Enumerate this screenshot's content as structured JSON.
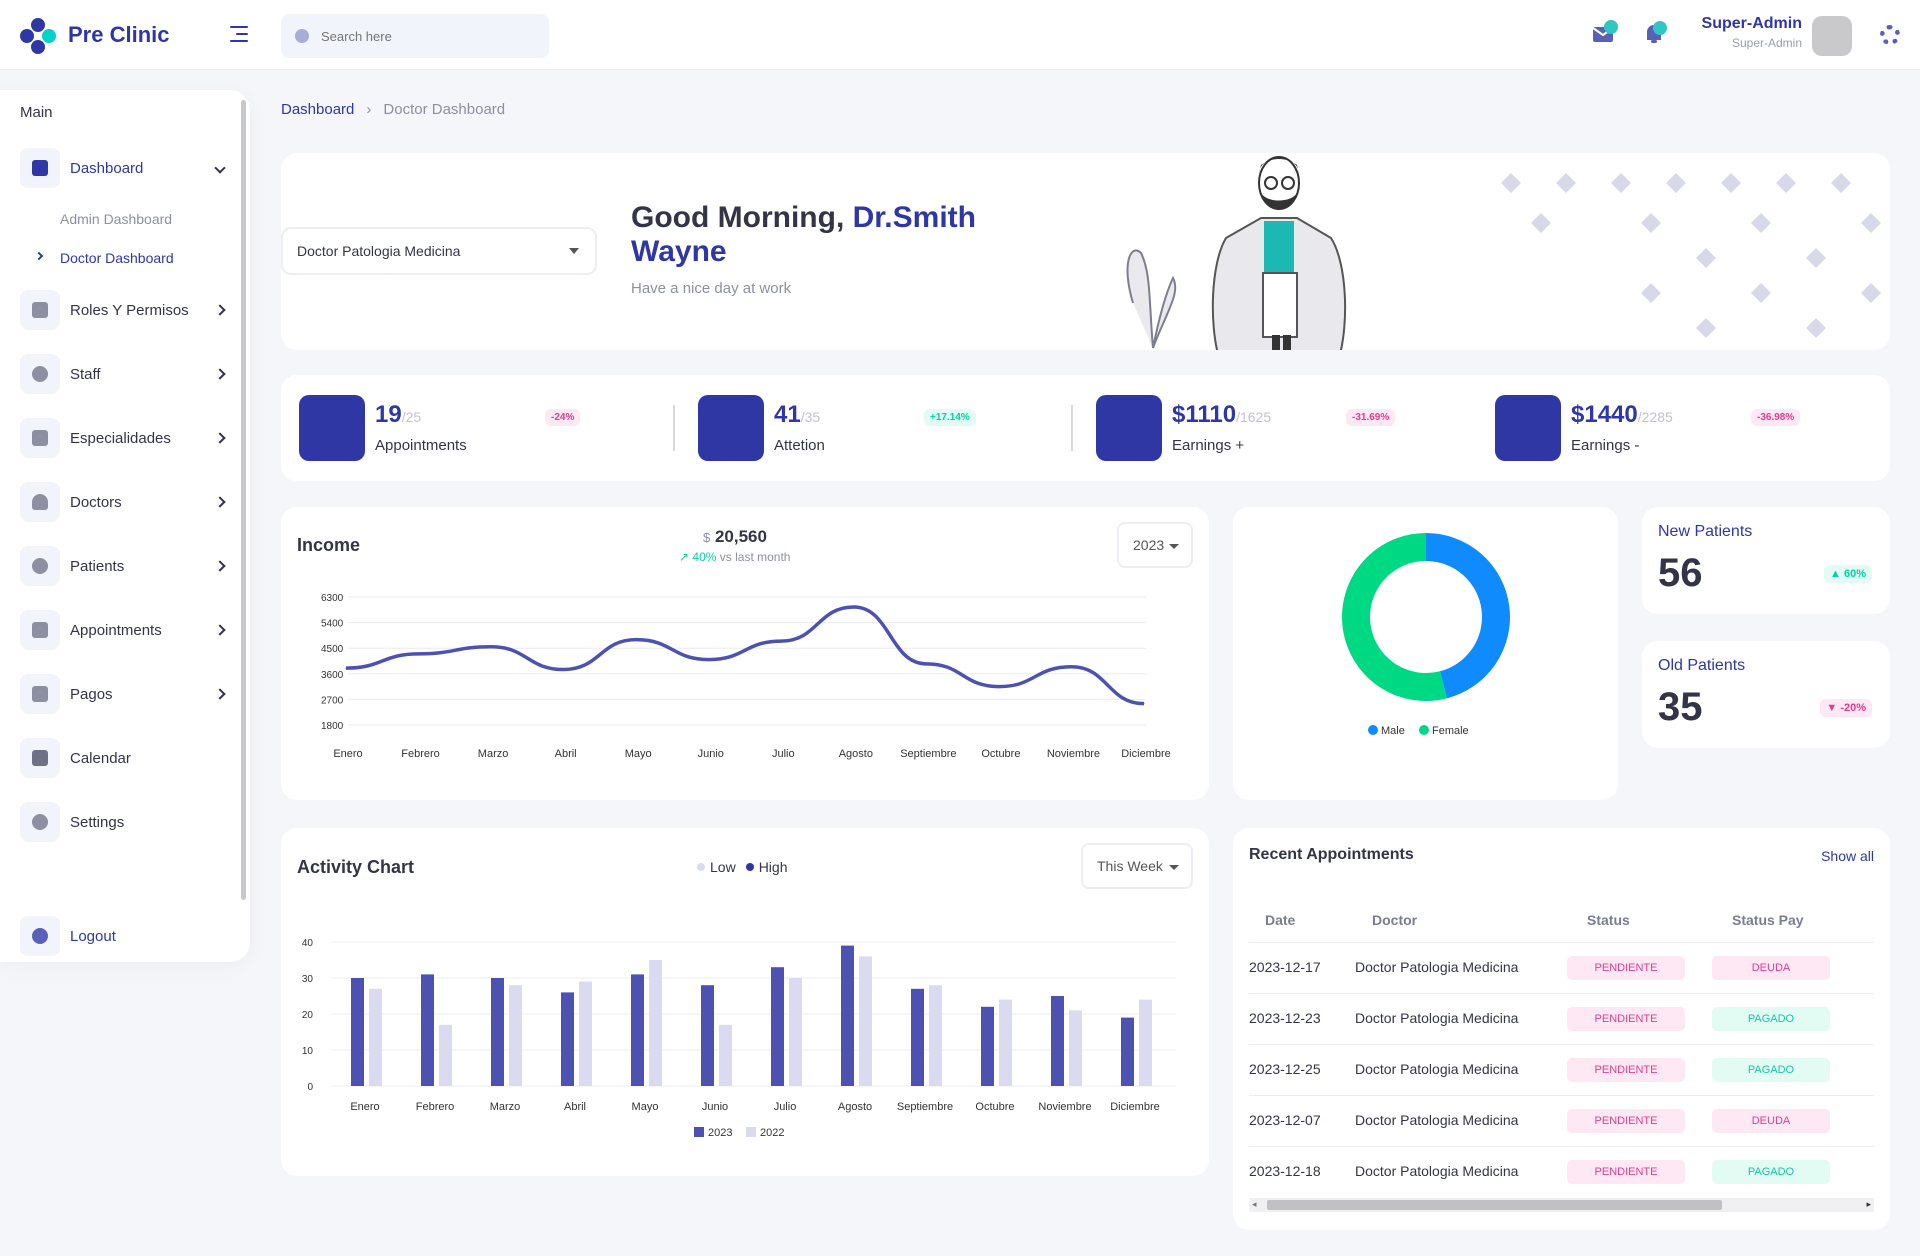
{
  "app": {
    "name": "Pre Clinic"
  },
  "search": {
    "placeholder": "Search here"
  },
  "user": {
    "name": "Super-Admin",
    "role": "Super-Admin"
  },
  "sidebar": {
    "section": "Main",
    "items": [
      {
        "label": "Dashboard",
        "icon": "dashboard-icon"
      },
      {
        "label": "Roles Y Permisos",
        "icon": "roles-icon"
      },
      {
        "label": "Staff",
        "icon": "staff-icon"
      },
      {
        "label": "Especialidades",
        "icon": "specialties-icon"
      },
      {
        "label": "Doctors",
        "icon": "doctor-icon"
      },
      {
        "label": "Patients",
        "icon": "patients-icon"
      },
      {
        "label": "Appointments",
        "icon": "calendar-icon"
      },
      {
        "label": "Pagos",
        "icon": "payments-icon"
      },
      {
        "label": "Calendar",
        "icon": "calendar-icon"
      },
      {
        "label": "Settings",
        "icon": "gear-icon"
      }
    ],
    "sub_items": [
      "Admin Dashboard",
      "Doctor Dashboard"
    ],
    "logout": "Logout"
  },
  "breadcrumb": {
    "root": "Dashboard",
    "current": "Doctor Dashboard"
  },
  "welcome": {
    "specialty": "Doctor Patologia Medicina",
    "greeting": "Good Morning,",
    "name": "Dr.Smith Wayne",
    "subtitle": "Have a nice day at work"
  },
  "stats": [
    {
      "value": "19",
      "total": "/25",
      "label": "Appointments",
      "badge": "-24%",
      "trend": "neg"
    },
    {
      "value": "41",
      "total": "/35",
      "label": "Attetion",
      "badge": "+17.14%",
      "trend": "pos"
    },
    {
      "value": "$1110",
      "total": "/1625",
      "label": "Earnings +",
      "badge": "-31.69%",
      "trend": "neg"
    },
    {
      "value": "$1440",
      "total": "/2285",
      "label": "Earnings -",
      "badge": "-36.98%",
      "trend": "neg"
    }
  ],
  "income": {
    "title": "Income",
    "currency": "$",
    "amount": "20,560",
    "change": "40%",
    "change_label": "vs last month",
    "year": "2023"
  },
  "patients": {
    "new": {
      "title": "New Patients",
      "value": "56",
      "badge": "▲ 60%"
    },
    "old": {
      "title": "Old Patients",
      "value": "35",
      "badge": "▼ -20%"
    }
  },
  "activity": {
    "title": "Activity Chart",
    "legend_low": "Low",
    "legend_high": "High",
    "period": "This Week"
  },
  "recent": {
    "title": "Recent Appointments",
    "show_all": "Show all",
    "columns": [
      "Date",
      "Doctor",
      "Status",
      "Status Pay"
    ],
    "rows": [
      {
        "date": "2023-12-17",
        "doctor": "Doctor Patologia Medicina",
        "status": "PENDIENTE",
        "pay": "DEUDA"
      },
      {
        "date": "2023-12-23",
        "doctor": "Doctor Patologia Medicina",
        "status": "PENDIENTE",
        "pay": "PAGADO"
      },
      {
        "date": "2023-12-25",
        "doctor": "Doctor Patologia Medicina",
        "status": "PENDIENTE",
        "pay": "PAGADO"
      },
      {
        "date": "2023-12-07",
        "doctor": "Doctor Patologia Medicina",
        "status": "PENDIENTE",
        "pay": "DEUDA"
      },
      {
        "date": "2023-12-18",
        "doctor": "Doctor Patologia Medicina",
        "status": "PENDIENTE",
        "pay": "PAGADO"
      }
    ]
  },
  "colors": {
    "primary": "#2e37a4",
    "line": "#4d51b0",
    "male": "#0f8bfd",
    "female": "#00d983",
    "bar2023": "#4d51b0",
    "bar2022": "#dadbf0"
  },
  "chart_data": [
    {
      "type": "line",
      "categories": [
        "Enero",
        "Febrero",
        "Marzo",
        "Abril",
        "Mayo",
        "Junio",
        "Julio",
        "Agosto",
        "Septiembre",
        "Octubre",
        "Noviembre",
        "Diciembre"
      ],
      "series": [
        {
          "values": [
            3800,
            4300,
            4550,
            3750,
            4800,
            4100,
            4750,
            5950,
            3950,
            3150,
            3850,
            2550
          ]
        }
      ],
      "yticks": [
        1800,
        2700,
        3600,
        4500,
        5400,
        6300
      ],
      "ylim": [
        1800,
        6300
      ],
      "grid": true
    },
    {
      "type": "pie",
      "donut": true,
      "labels": [
        "Male",
        "Female"
      ],
      "values": [
        46,
        54
      ],
      "legend": "bottom"
    },
    {
      "type": "bar",
      "categories": [
        "Enero",
        "Febrero",
        "Marzo",
        "Abril",
        "Mayo",
        "Junio",
        "Julio",
        "Agosto",
        "Septiembre",
        "Octubre",
        "Noviembre",
        "Diciembre"
      ],
      "series": [
        {
          "name": "2023",
          "values": [
            30,
            31,
            30,
            26,
            31,
            28,
            33,
            39,
            27,
            22,
            25,
            19
          ]
        },
        {
          "name": "2022",
          "values": [
            27,
            17,
            28,
            29,
            35,
            17,
            30,
            36,
            28,
            24,
            21,
            24
          ]
        }
      ],
      "yticks": [
        0,
        10,
        20,
        30,
        40
      ],
      "ylim": [
        0,
        40
      ],
      "legend": "bottom",
      "grid": true
    }
  ]
}
